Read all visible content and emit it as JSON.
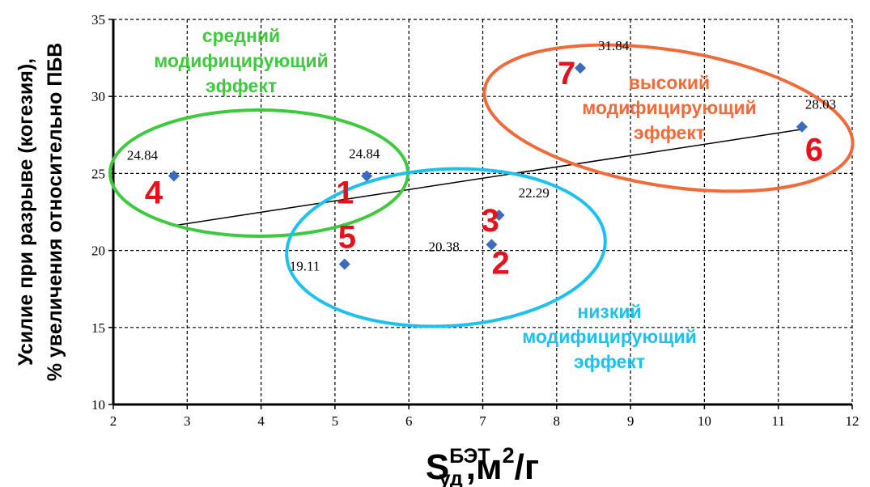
{
  "colors": {
    "point": "#3a6bbf",
    "number_label": "#e8101a",
    "green": "#3ec93e",
    "orange": "#f06a3a",
    "blue": "#1ec0f0",
    "grid": "#000000",
    "trend": "#000000"
  },
  "chart_data": {
    "type": "scatter",
    "title": "",
    "ylabel_line1": "Усилие при разрыве (когезия),",
    "ylabel_line2": "% увеличения относительно ПБВ",
    "xlabel": {
      "base": "S",
      "sup": "БЭТ",
      "sub": "уд",
      "mid": ",м",
      "sup2": "2",
      "end": "/г"
    },
    "xlim": [
      2,
      12
    ],
    "ylim": [
      10,
      35
    ],
    "x_ticks": [
      "2",
      "3",
      "4",
      "5",
      "6",
      "7",
      "8",
      "9",
      "10",
      "11",
      "12"
    ],
    "y_ticks": [
      "10",
      "15",
      "20",
      "25",
      "30",
      "35"
    ],
    "grid": true,
    "points": [
      {
        "id": "1",
        "x": 5.43,
        "y": 24.84,
        "label": "24.84"
      },
      {
        "id": "2",
        "x": 7.12,
        "y": 20.38,
        "label": "20.38"
      },
      {
        "id": "3",
        "x": 7.22,
        "y": 22.29,
        "label": "22.29"
      },
      {
        "id": "4",
        "x": 2.82,
        "y": 24.84,
        "label": "24.84"
      },
      {
        "id": "5",
        "x": 5.13,
        "y": 19.11,
        "label": "19.11"
      },
      {
        "id": "6",
        "x": 11.32,
        "y": 28.03,
        "label": "28.03"
      },
      {
        "id": "7",
        "x": 8.32,
        "y": 31.84,
        "label": "31.84"
      }
    ],
    "trendline": {
      "x": [
        2.8,
        11.3
      ],
      "y": [
        21.6,
        27.85
      ]
    },
    "groups": [
      {
        "name": "medium",
        "lines": [
          "средний",
          "модифицирующий",
          "эффект"
        ],
        "color": "#3ec93e"
      },
      {
        "name": "high",
        "lines": [
          "высокий",
          "модифицирующий",
          "эффект"
        ],
        "color": "#f06a3a"
      },
      {
        "name": "low",
        "lines": [
          "низкий",
          "модифицирующий",
          "эффект"
        ],
        "color": "#1ec0f0"
      }
    ]
  }
}
